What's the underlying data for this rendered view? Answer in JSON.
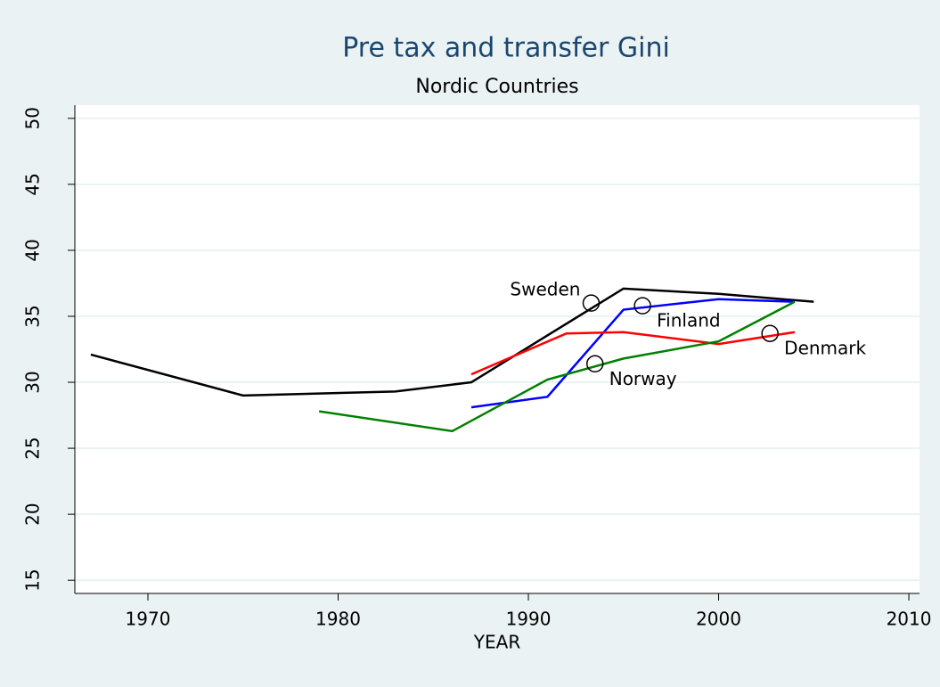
{
  "chart_data": {
    "type": "line",
    "title": "Pre tax and transfer Gini",
    "subtitle": "Nordic Countries",
    "xlabel": "YEAR",
    "xlim": [
      1966.16,
      2010.56
    ],
    "ylim": [
      14,
      51
    ],
    "xticks": [
      1970,
      1980,
      1990,
      2000,
      2010
    ],
    "yticks": [
      15,
      20,
      25,
      30,
      35,
      40,
      45,
      50
    ],
    "grid": true,
    "series": [
      {
        "name": "Sweden",
        "color": "#000000",
        "x": [
          1967,
          1975,
          1983,
          1987,
          1995,
          2000,
          2005
        ],
        "values": [
          32.1,
          29.0,
          29.3,
          30.0,
          37.1,
          36.7,
          36.1
        ],
        "label_point": {
          "x": 1993.3,
          "y": 36.0,
          "position": "left"
        }
      },
      {
        "name": "Finland",
        "color": "#0000ff",
        "x": [
          1987,
          1991,
          1995,
          2000,
          2004
        ],
        "values": [
          28.1,
          28.9,
          35.5,
          36.3,
          36.1
        ],
        "label_point": {
          "x": 1996.0,
          "y": 35.8,
          "position": "below-right"
        }
      },
      {
        "name": "Denmark",
        "color": "#ff0000",
        "x": [
          1987,
          1992,
          1995,
          2000,
          2004
        ],
        "values": [
          30.6,
          33.7,
          33.8,
          32.9,
          33.8
        ],
        "label_point": {
          "x": 2002.7,
          "y": 33.7,
          "position": "below-right"
        }
      },
      {
        "name": "Norway",
        "color": "#008000",
        "x": [
          1979,
          1986,
          1991,
          1995,
          2000,
          2004
        ],
        "values": [
          27.8,
          26.3,
          30.2,
          31.8,
          33.1,
          36.1
        ],
        "label_point": {
          "x": 1993.5,
          "y": 31.4,
          "position": "below-right"
        }
      }
    ]
  }
}
